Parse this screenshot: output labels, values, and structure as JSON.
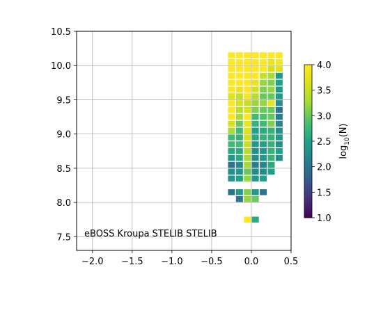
{
  "chart_data": {
    "type": "heatmap",
    "title": "",
    "xlabel": "",
    "ylabel": "",
    "xlim": [
      -2.2,
      0.5
    ],
    "ylim": [
      7.3,
      10.5
    ],
    "grid": true,
    "x_ticks": [
      -2.0,
      -1.5,
      -1.0,
      -0.5,
      0.0,
      0.5
    ],
    "x_tick_labels": [
      "−2.0",
      "−1.5",
      "−1.0",
      "−0.5",
      "0.0",
      "0.5"
    ],
    "y_ticks": [
      7.5,
      8.0,
      8.5,
      9.0,
      9.5,
      10.0,
      10.5
    ],
    "y_tick_labels": [
      "7.5",
      "8.0",
      "8.5",
      "9.0",
      "9.5",
      "10.0",
      "10.5"
    ],
    "annotation": "eBOSS Kroupa STELIB STELIB",
    "colorbar": {
      "label": "log10(N)",
      "label_base": "log",
      "label_sub": "10",
      "label_arg": "(N)",
      "vmin": 1.0,
      "vmax": 4.0,
      "ticks": [
        1.0,
        1.5,
        2.0,
        2.5,
        3.0,
        3.5,
        4.0
      ],
      "tick_labels": [
        "1.0",
        "1.5",
        "2.0",
        "2.5",
        "3.0",
        "3.5",
        "4.0"
      ],
      "colormap": "viridis"
    },
    "cell_size": [
      0.1,
      0.1
    ],
    "columns_x": [
      -0.25,
      -0.15,
      -0.05,
      0.05,
      0.15,
      0.25,
      0.35
    ],
    "rows_y": [
      10.15,
      10.05,
      9.95,
      9.85,
      9.75,
      9.65,
      9.55,
      9.45,
      9.35,
      9.25,
      9.15,
      9.05,
      8.95,
      8.85,
      8.75,
      8.65,
      8.55,
      8.45,
      8.35,
      8.25,
      8.15,
      8.05,
      7.95,
      7.85,
      7.75
    ],
    "grid_values": [
      [
        4.0,
        4.0,
        4.0,
        4.0,
        4.0,
        4.0,
        4.0
      ],
      [
        4.0,
        4.0,
        4.0,
        4.0,
        4.0,
        3.8,
        3.9
      ],
      [
        4.0,
        4.0,
        4.0,
        4.0,
        4.0,
        3.6,
        3.7
      ],
      [
        4.0,
        4.0,
        4.0,
        4.0,
        3.5,
        3.3,
        2.4
      ],
      [
        4.0,
        4.0,
        4.0,
        3.8,
        3.2,
        3.1,
        2.5
      ],
      [
        4.0,
        3.8,
        4.0,
        3.6,
        3.1,
        3.2,
        2.4
      ],
      [
        3.7,
        3.5,
        3.9,
        3.4,
        3.0,
        3.0,
        2.4
      ],
      [
        4.0,
        3.6,
        3.5,
        3.2,
        3.2,
        3.8,
        2.3
      ],
      [
        4.0,
        3.4,
        3.6,
        3.1,
        3.0,
        3.0,
        2.0
      ],
      [
        4.0,
        3.3,
        4.0,
        2.8,
        2.9,
        3.0,
        2.1
      ],
      [
        3.6,
        3.0,
        3.8,
        2.7,
        2.8,
        3.1,
        2.2
      ],
      [
        3.3,
        2.8,
        3.7,
        2.5,
        2.6,
        2.7,
        2.3
      ],
      [
        2.8,
        2.7,
        3.6,
        2.6,
        2.7,
        2.7,
        2.4
      ],
      [
        2.8,
        2.8,
        3.5,
        2.4,
        2.5,
        2.7,
        2.3
      ],
      [
        2.6,
        2.6,
        3.4,
        2.3,
        2.4,
        2.7,
        2.5
      ],
      [
        2.4,
        2.6,
        3.3,
        2.3,
        2.4,
        2.7,
        2.3
      ],
      [
        2.0,
        2.2,
        3.3,
        2.1,
        2.2,
        2.6,
        null
      ],
      [
        2.3,
        2.4,
        3.0,
        2.3,
        2.3,
        2.5,
        null
      ],
      [
        2.4,
        2.5,
        3.2,
        2.4,
        2.5,
        null,
        null
      ],
      [
        null,
        null,
        null,
        null,
        null,
        null,
        null
      ],
      [
        2.0,
        2.4,
        3.1,
        2.4,
        2.0,
        null,
        null
      ],
      [
        null,
        2.0,
        3.2,
        3.0,
        null,
        null,
        null
      ],
      [
        null,
        null,
        null,
        null,
        null,
        null,
        null
      ],
      [
        null,
        null,
        null,
        null,
        null,
        null,
        null
      ],
      [
        null,
        null,
        4.0,
        2.6,
        null,
        null,
        null
      ]
    ]
  }
}
